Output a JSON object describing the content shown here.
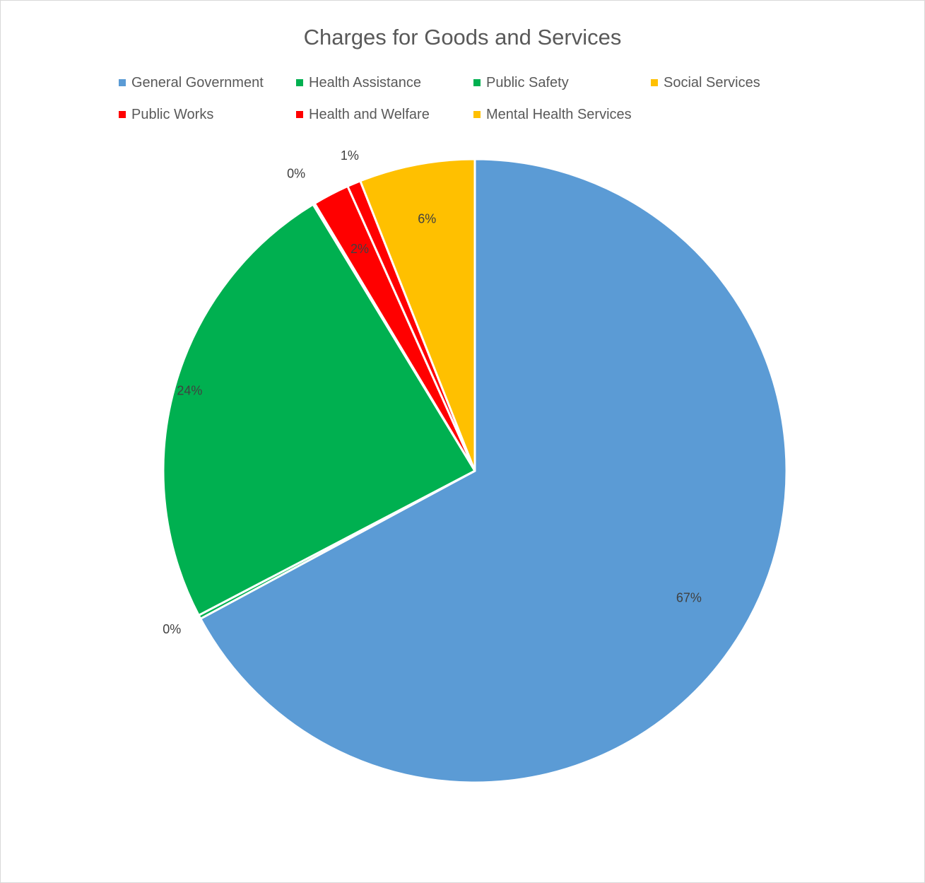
{
  "chart_data": {
    "type": "pie",
    "title": "Charges for Goods and Services",
    "legend_position": "top",
    "categories": [
      "General Government",
      "Health Assistance",
      "Public Safety",
      "Social Services",
      "Public Works",
      "Health and Welfare",
      "Mental Health Services"
    ],
    "values": [
      67.2,
      0.2,
      24.0,
      0.1,
      1.9,
      0.7,
      6.0
    ],
    "labels": [
      "67%",
      "0%",
      "24%",
      "0%",
      "2%",
      "1%",
      "6%"
    ],
    "colors": [
      "#5b9bd5",
      "#00b050",
      "#00b050",
      "#ffc000",
      "#ff0000",
      "#ff0000",
      "#ffc000"
    ],
    "start_angle_deg": 0,
    "direction": "clockwise"
  }
}
